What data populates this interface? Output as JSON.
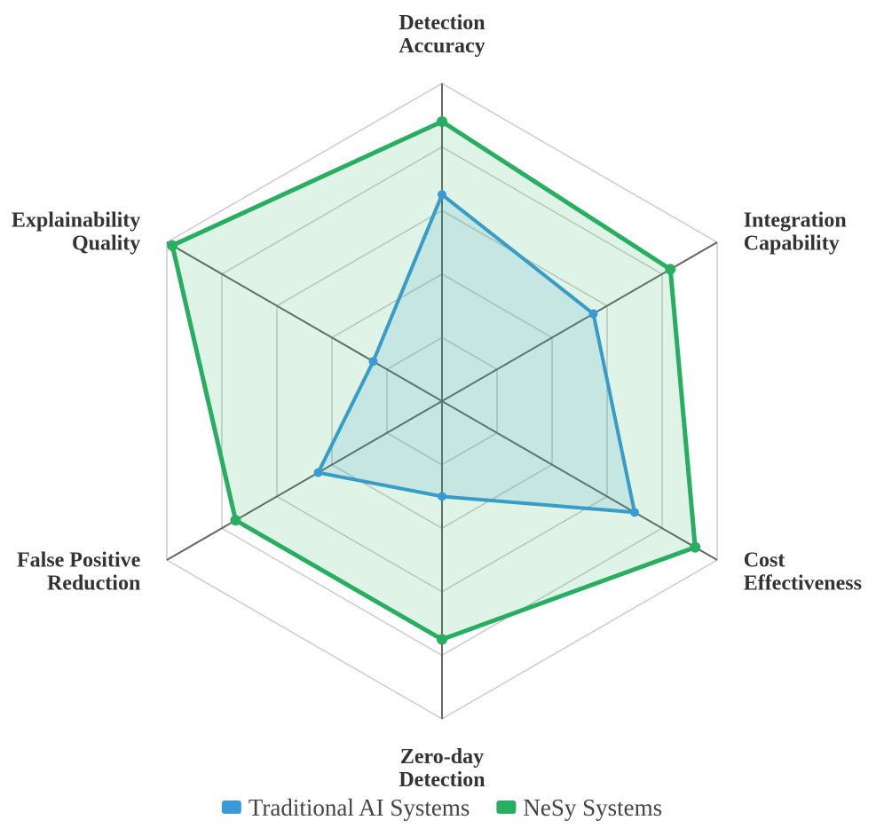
{
  "chart_data": {
    "type": "radar",
    "axes": [
      [
        "Detection",
        "Accuracy"
      ],
      [
        "Integration",
        "Capability"
      ],
      [
        "Cost",
        "Effectiveness"
      ],
      [
        "Zero-day",
        "Detection"
      ],
      [
        "False Positive",
        "Reduction"
      ],
      [
        "Explainability",
        "Quality"
      ]
    ],
    "range": [
      0,
      100
    ],
    "grid_levels": 5,
    "series": [
      {
        "name": "Traditional AI Systems",
        "color": "#3a9ad9",
        "values": [
          65,
          55,
          70,
          30,
          45,
          25
        ]
      },
      {
        "name": "NeSy Systems",
        "color": "#27ae60",
        "values": [
          88,
          83,
          92,
          75,
          75,
          98
        ]
      }
    ],
    "legend": "bottom"
  }
}
